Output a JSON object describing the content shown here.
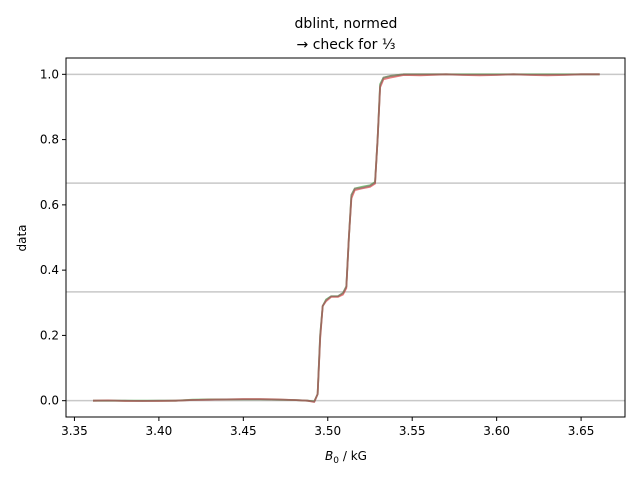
{
  "chart_data": {
    "type": "line",
    "title_line1": "dblint, normed",
    "title_line2": "→ check for ⅓",
    "xlabel_main": "B",
    "xlabel_sub": "0",
    "xlabel_unit": " / kG",
    "ylabel": "data",
    "xlim": [
      3.345,
      3.676
    ],
    "ylim": [
      -0.05,
      1.05
    ],
    "x_ticks": [
      3.35,
      3.4,
      3.45,
      3.5,
      3.55,
      3.6,
      3.65
    ],
    "x_tick_labels": [
      "3.35",
      "3.40",
      "3.45",
      "3.50",
      "3.55",
      "3.60",
      "3.65"
    ],
    "y_ticks": [
      0.0,
      0.2,
      0.4,
      0.6,
      0.8,
      1.0
    ],
    "y_tick_labels": [
      "0.0",
      "0.2",
      "0.4",
      "0.6",
      "0.8",
      "1.0"
    ],
    "hlines": [
      0,
      0.3333,
      0.6667,
      1.0
    ],
    "hline_color": "#c8c8c8",
    "grid": false,
    "series": [
      {
        "color": "#2ca02c",
        "x": [
          3.361,
          3.37,
          3.38,
          3.39,
          3.4,
          3.41,
          3.42,
          3.43,
          3.44,
          3.45,
          3.46,
          3.47,
          3.48,
          3.488,
          3.492,
          3.494,
          3.4955,
          3.497,
          3.499,
          3.502,
          3.506,
          3.509,
          3.511,
          3.5125,
          3.514,
          3.516,
          3.52,
          3.525,
          3.528,
          3.5295,
          3.531,
          3.533,
          3.537,
          3.545,
          3.555,
          3.57,
          3.58,
          3.59,
          3.6,
          3.61,
          3.62,
          3.63,
          3.64,
          3.65,
          3.661
        ],
        "y": [
          0.0,
          0.0,
          0.0,
          0.0,
          0.0,
          0.0,
          0.003,
          0.004,
          0.004,
          0.004,
          0.004,
          0.003,
          0.002,
          0.0,
          -0.002,
          0.02,
          0.2,
          0.29,
          0.31,
          0.32,
          0.32,
          0.33,
          0.35,
          0.5,
          0.63,
          0.65,
          0.655,
          0.66,
          0.67,
          0.8,
          0.97,
          0.99,
          0.995,
          1.0,
          1.0,
          1.0,
          1.0,
          1.0,
          1.0,
          1.0,
          1.0,
          1.0,
          1.0,
          1.0,
          1.0
        ]
      },
      {
        "color": "#d62728",
        "x": [
          3.361,
          3.37,
          3.38,
          3.39,
          3.4,
          3.41,
          3.42,
          3.43,
          3.44,
          3.45,
          3.46,
          3.47,
          3.48,
          3.488,
          3.492,
          3.494,
          3.4955,
          3.497,
          3.499,
          3.502,
          3.506,
          3.509,
          3.511,
          3.5125,
          3.514,
          3.516,
          3.52,
          3.525,
          3.528,
          3.5295,
          3.531,
          3.533,
          3.537,
          3.545,
          3.555,
          3.57,
          3.58,
          3.59,
          3.6,
          3.61,
          3.62,
          3.63,
          3.64,
          3.65,
          3.661
        ],
        "y": [
          0.0,
          0.001,
          -0.001,
          -0.001,
          -0.001,
          0.0,
          0.002,
          0.003,
          0.004,
          0.005,
          0.005,
          0.004,
          0.002,
          0.0,
          -0.004,
          0.02,
          0.19,
          0.29,
          0.305,
          0.318,
          0.318,
          0.325,
          0.345,
          0.5,
          0.62,
          0.645,
          0.65,
          0.655,
          0.665,
          0.8,
          0.96,
          0.985,
          0.99,
          0.998,
          0.997,
          1.0,
          0.998,
          0.997,
          0.998,
          1.0,
          0.998,
          0.997,
          0.998,
          1.0,
          1.0
        ]
      },
      {
        "color": "#8c6d6d",
        "x": [
          3.361,
          3.37,
          3.38,
          3.39,
          3.4,
          3.41,
          3.42,
          3.43,
          3.44,
          3.45,
          3.46,
          3.47,
          3.48,
          3.488,
          3.492,
          3.494,
          3.4955,
          3.497,
          3.499,
          3.502,
          3.506,
          3.509,
          3.511,
          3.5125,
          3.514,
          3.516,
          3.52,
          3.525,
          3.528,
          3.5295,
          3.531,
          3.533,
          3.537,
          3.545,
          3.555,
          3.57,
          3.58,
          3.59,
          3.6,
          3.61,
          3.62,
          3.63,
          3.64,
          3.65,
          3.661
        ],
        "y": [
          0.0,
          0.0,
          0.0,
          -0.001,
          0.0,
          0.0,
          0.002,
          0.003,
          0.004,
          0.004,
          0.004,
          0.003,
          0.002,
          0.0,
          -0.003,
          0.02,
          0.2,
          0.29,
          0.308,
          0.32,
          0.32,
          0.33,
          0.35,
          0.5,
          0.63,
          0.65,
          0.652,
          0.658,
          0.668,
          0.8,
          0.965,
          0.99,
          0.995,
          1.0,
          1.0,
          1.0,
          0.999,
          0.999,
          0.999,
          1.0,
          0.999,
          0.999,
          0.999,
          1.0,
          1.0
        ]
      }
    ]
  }
}
